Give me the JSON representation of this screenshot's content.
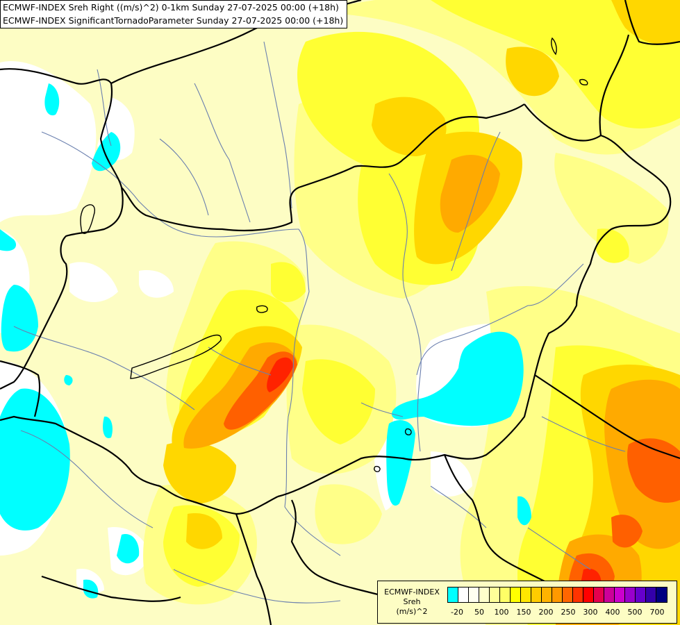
{
  "header": {
    "line1": "ECMWF-INDEX Sreh Right ((m/s)^2) 0-1km Sunday 27-07-2025 00:00 (+18h)",
    "line2": "ECMWF-INDEX SignificantTornadoParameter Sunday 27-07-2025 00:00 (+18h)"
  },
  "legend": {
    "source": "ECMWF-INDEX",
    "parameter": "Sreh",
    "unit": "(m/s)^2",
    "colors": [
      "#00ffff",
      "#ffffff",
      "#fffff0",
      "#ffffcc",
      "#ffff99",
      "#ffff66",
      "#ffff00",
      "#ffe600",
      "#ffcc00",
      "#ffb300",
      "#ff9900",
      "#ff6600",
      "#ff3300",
      "#ff0000",
      "#e6004d",
      "#cc0099",
      "#cc00cc",
      "#9900cc",
      "#6600cc",
      "#3300aa",
      "#000080"
    ],
    "ticks": [
      "-20",
      "50",
      "100",
      "150",
      "200",
      "250",
      "300",
      "400",
      "500",
      "700"
    ]
  },
  "map": {
    "palette": {
      "cyan": "#00ffff",
      "white": "#ffffff",
      "pale": "#fdfdc4",
      "light": "#ffff88",
      "yellow": "#ffff33",
      "gold": "#ffd700",
      "orange": "#ffaa00",
      "red_orange": "#ff6000",
      "red": "#ff2200",
      "border": "#000000",
      "river": "#6a7fae"
    }
  }
}
